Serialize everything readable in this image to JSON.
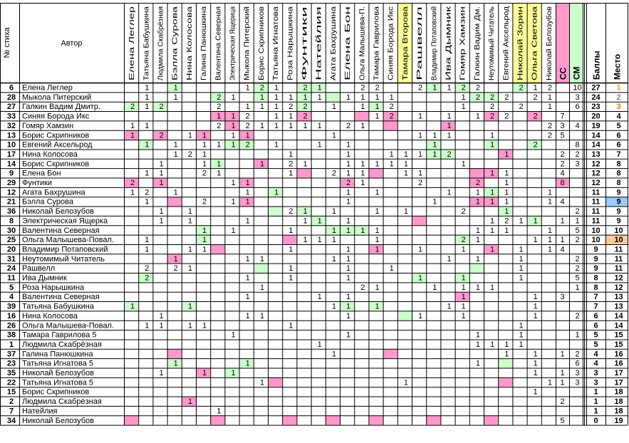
{
  "header": {
    "num_label": "№ стиха",
    "author_label": "Автор",
    "voters": [
      "Елена Леглер",
      "Татьяна Бабушкина",
      "Людмила Скабрёзная",
      "Бэлла Сурова",
      "Нина Колосова",
      "Галина Панюшкина",
      "Валентина Северная",
      "Электрическая Ящерица",
      "Мыкола Питерский",
      "Борис Скрипников",
      "Татьяна Игнатова",
      "Роза Нарышкина",
      "Фунтики",
      "Натейлия",
      "Агата Бахрушина",
      "Елена Бон",
      "Ольга Малышева-П.",
      "Тамара Гаврилова",
      "Синяя Борода Икс",
      "Тамара Второва",
      "Рашвелл",
      "Владимир Потаповский",
      "Ива Дымник",
      "Гомяр Хамзин",
      "Галкин Вадим Дм.",
      "Неутомимый Читатель",
      "Евгений Аксельрод",
      "Николай Зорин",
      "Ольга Светова",
      "Николай Белозубов"
    ],
    "highlighted_voters": {
      "19": "#ffff99",
      "27": "#ffff99",
      "28": "#ffff99"
    },
    "cc_label": "СС",
    "cm_label": "СМ",
    "score_label": "Баллы",
    "place_label": "Место"
  },
  "colors": {
    "pink": "#ff99cc",
    "green": "#ccffcc",
    "blue": "#99ccff",
    "orange": "#ffcc99",
    "yellow": "#ffff99",
    "gold": "#ff9900",
    "silver": "#808080",
    "bronze": "#ff6600"
  },
  "rows": [
    {
      "num": "6",
      "author": "Елена Леглер",
      "votes": {
        "1": "1",
        "3": "1",
        "8": "1",
        "9": "2",
        "10": "1",
        "12": "2",
        "13": "1",
        "16": "2",
        "17": "2",
        "20": "2",
        "21": "1",
        "22": "1",
        "23": "2",
        "24": "2",
        "27": "2",
        "28": "1",
        "29": "2"
      },
      "cc": "",
      "cm": "10",
      "score": "27",
      "place": "1",
      "place_color": "gold",
      "pink": [],
      "green": [
        3,
        9,
        12,
        13,
        21,
        23,
        27
      ],
      "place_bg": ""
    },
    {
      "num": "28",
      "author": "Мыкола Питерский",
      "votes": {
        "1": "1",
        "3": "1",
        "6": "2",
        "7": "1",
        "9": "1",
        "10": "1",
        "11": "1",
        "12": "1",
        "13": "1",
        "15": "1",
        "16": "1",
        "17": "1",
        "18": "1",
        "23": "1",
        "24": "2",
        "25": "2",
        "26": "2",
        "28": "2",
        "29": "1"
      },
      "cc": "",
      "cm": "3",
      "score": "24",
      "place": "2",
      "place_color": "silver",
      "pink": [],
      "green": [
        6,
        9,
        12,
        14,
        24,
        25
      ],
      "place_bg": ""
    },
    {
      "num": "27",
      "author": "Галкин Вадим Дмитр.",
      "votes": {
        "0": "2",
        "1": "1",
        "2": "2",
        "6": "2",
        "8": "1",
        "9": "1",
        "10": "1",
        "11": "2",
        "12": "2",
        "14": "1",
        "16": "1",
        "17": "1",
        "18": "2",
        "23": "1",
        "25": "2",
        "27": "2",
        "29": "1"
      },
      "cc": "",
      "cm": "6",
      "score": "23",
      "place": "3",
      "place_color": "bronze",
      "pink": [],
      "green": [
        0,
        2,
        12,
        17
      ],
      "place_bg": ""
    },
    {
      "num": "33",
      "author": "Синяя Борода Икс",
      "votes": {
        "6": "1",
        "7": "1",
        "8": "2",
        "10": "1",
        "11": "1",
        "12": "2",
        "17": "1",
        "18": "2",
        "20": "1",
        "22": "1",
        "24": "1",
        "25": "2",
        "26": "2",
        "28": "2"
      },
      "cc": "7",
      "cm": "",
      "score": "20",
      "place": "4",
      "place_color": "",
      "pink": [
        6,
        7,
        12,
        16,
        18,
        25,
        28
      ],
      "green": [],
      "place_bg": ""
    },
    {
      "num": "32",
      "author": "Гомяр Хамзин",
      "votes": {
        "0": "1",
        "1": "1",
        "6": "2",
        "7": "1",
        "8": "2",
        "9": "1",
        "10": "1",
        "11": "1",
        "12": "1",
        "13": "1",
        "15": "2",
        "16": "1",
        "22": "1",
        "29": "2"
      },
      "cc": "3",
      "cm": "4",
      "score": "19",
      "place": "5",
      "place_color": "",
      "pink": [
        7,
        18,
        22
      ],
      "green": [],
      "place_bg": ""
    },
    {
      "num": "13",
      "author": "Борис Скрипников",
      "votes": {
        "0": "1",
        "2": "2",
        "4": "1",
        "5": "1",
        "7": "1",
        "8": "1",
        "14": "1",
        "20": "1",
        "21": "1",
        "22": "1",
        "25": "1",
        "29": "2"
      },
      "cc": "5",
      "cm": "",
      "score": "14",
      "place": "6",
      "place_color": "",
      "pink": [
        0,
        2,
        5,
        8
      ],
      "green": [],
      "place_bg": ""
    },
    {
      "num": "10",
      "author": "Евгений Аксельрод",
      "votes": {
        "1": "1",
        "3": "1",
        "5": "1",
        "6": "1",
        "7": "1",
        "8": "2",
        "10": "1",
        "13": "1",
        "15": "1",
        "21": "1",
        "25": "1",
        "28": "2"
      },
      "cc": "",
      "cm": "8",
      "score": "14",
      "place": "6",
      "place_color": "",
      "pink": [],
      "green": [
        1,
        7,
        8,
        21,
        25,
        28
      ],
      "place_bg": ""
    },
    {
      "num": "17",
      "author": "Нина Колосова",
      "votes": {
        "3": "1",
        "4": "2",
        "5": "1",
        "11": "1",
        "15": "1",
        "18": "1",
        "19": "1",
        "20": "1",
        "21": "1",
        "22": "2",
        "26": "1"
      },
      "cc": "2",
      "cm": "2",
      "score": "13",
      "place": "7",
      "place_color": "",
      "pink": [
        26
      ],
      "green": [
        21,
        22
      ],
      "place_bg": ""
    },
    {
      "num": "14",
      "author": "Борис Скрипников",
      "votes": {
        "2": "1",
        "5": "1",
        "6": "1",
        "9": "1",
        "11": "2",
        "12": "1",
        "15": "1",
        "16": "1",
        "17": "1",
        "18": "1",
        "19": "1",
        "23": "1"
      },
      "cc": "2",
      "cm": "3",
      "score": "12",
      "place": "8",
      "place_color": "",
      "pink": [
        9
      ],
      "green": [
        6
      ],
      "place_bg": ""
    },
    {
      "num": "9",
      "author": "Елена Бон",
      "votes": {
        "1": "1",
        "2": "1",
        "5": "2",
        "6": "1",
        "11": "1",
        "14": "2",
        "15": "1",
        "16": "1",
        "19": "1",
        "20": "1",
        "25": "1",
        "26": "1"
      },
      "cc": "4",
      "cm": "",
      "score": "12",
      "place": "8",
      "place_color": "",
      "pink": [
        12,
        17,
        24,
        25
      ],
      "green": [],
      "place_bg": ""
    },
    {
      "num": "29",
      "author": "Фунтики",
      "votes": {
        "0": "2",
        "2": "1",
        "7": "1",
        "8": "1",
        "15": "2",
        "16": "1",
        "20": "2",
        "24": "2",
        "26": "1"
      },
      "cc": "8",
      "cm": "",
      "score": "12",
      "place": "8",
      "place_color": "",
      "pink": [
        0,
        2,
        8,
        15,
        24,
        31
      ],
      "green": [],
      "place_bg": ""
    },
    {
      "num": "12",
      "author": "Агата Бахрушина",
      "votes": {
        "0": "1",
        "1": "2",
        "3": "1",
        "8": "1",
        "10": "1",
        "15": "1",
        "17": "1",
        "22": "1",
        "24": "1",
        "25": "1",
        "26": "1",
        "29": "1"
      },
      "cc": "",
      "cm": "",
      "score": "11",
      "place": "9",
      "place_color": "",
      "pink": [],
      "green": [
        10,
        25
      ],
      "place_bg": ""
    },
    {
      "num": "21",
      "author": "Бэлла Сурова",
      "votes": {
        "1": "1",
        "5": "2",
        "7": "1",
        "8": "1",
        "15": "1",
        "21": "1",
        "24": "1",
        "25": "1",
        "26": "1",
        "29": "1"
      },
      "cc": "4",
      "cm": "",
      "score": "11",
      "place": "9",
      "place_color": "",
      "pink": [
        3,
        8,
        24,
        25
      ],
      "green": [],
      "place_bg": "blue"
    },
    {
      "num": "36",
      "author": "Николай Белозубов",
      "votes": {
        "2": "1",
        "4": "1",
        "11": "2",
        "12": "1",
        "14": "1",
        "17": "1",
        "19": "1",
        "23": "2",
        "26": "1"
      },
      "cc": "",
      "cm": "2",
      "score": "11",
      "place": "9",
      "place_color": "",
      "pink": [],
      "green": [
        10,
        12,
        26
      ],
      "place_bg": ""
    },
    {
      "num": "8",
      "author": "Электрическая Ящерка",
      "votes": {
        "2": "1",
        "4": "1",
        "8": "1",
        "12": "1",
        "13": "1",
        "15": "1",
        "25": "1",
        "26": "2",
        "27": "1",
        "28": "1"
      },
      "cc": "1",
      "cm": "1",
      "score": "11",
      "place": "9",
      "place_color": "",
      "pink": [
        20
      ],
      "green": [
        13,
        28
      ],
      "place_bg": ""
    },
    {
      "num": "30",
      "author": "Валентина Северная",
      "votes": {
        "5": "1",
        "7": "1",
        "11": "1",
        "14": "1",
        "15": "1",
        "16": "1",
        "17": "1",
        "24": "1",
        "25": "1",
        "26": "1",
        "29": "1"
      },
      "cc": "",
      "cm": "5",
      "score": "10",
      "place": "10",
      "place_color": "",
      "pink": [],
      "green": [
        5,
        14,
        15,
        16
      ],
      "place_bg": ""
    },
    {
      "num": "25",
      "author": "Ольга Малышева-Повал.",
      "votes": {
        "1": "1",
        "5": "1",
        "12": "1",
        "13": "1",
        "14": "1",
        "17": "1",
        "23": "2",
        "24": "1",
        "28": "1",
        "29": "1"
      },
      "cc": "1",
      "cm": "2",
      "score": "10",
      "place": "10",
      "place_color": "",
      "pink": [
        11
      ],
      "green": [
        5,
        23
      ],
      "place_bg": "orange"
    },
    {
      "num": "20",
      "author": "Владимир Потаповский",
      "votes": {
        "1": "1",
        "4": "1",
        "5": "1",
        "11": "1",
        "15": "1",
        "17": "1",
        "20": "1",
        "23": "1",
        "25": "1",
        "27": "1",
        "29": "1"
      },
      "cc": "4",
      "cm": "",
      "score": "9",
      "place": "11",
      "place_color": "",
      "pink": [
        6,
        17,
        25
      ],
      "green": [],
      "place_bg": ""
    },
    {
      "num": "31",
      "author": "Неутомимый Читатель",
      "votes": {
        "3": "1",
        "8": "1",
        "9": "1",
        "14": "1",
        "15": "1",
        "22": "1",
        "24": "1",
        "27": "1"
      },
      "cc": "",
      "cm": "2",
      "score": "9",
      "place": "11",
      "place_color": "",
      "pink": [
        3
      ],
      "green": [],
      "place_bg": ""
    },
    {
      "num": "24",
      "author": "Рашвелл",
      "votes": {
        "1": "2",
        "3": "2",
        "4": "1",
        "11": "1",
        "15": "1",
        "18": "1",
        "27": "1"
      },
      "cc": "",
      "cm": "2",
      "score": "9",
      "place": "11",
      "place_color": "",
      "pink": [],
      "green": [
        9,
        24
      ],
      "place_bg": ""
    },
    {
      "num": "11",
      "author": "Ива Дымник",
      "votes": {
        "1": "2",
        "8": "1",
        "11": "1",
        "15": "1",
        "20": "1",
        "23": "1",
        "27": "1"
      },
      "cc": "",
      "cm": "5",
      "score": "8",
      "place": "12",
      "place_color": "",
      "pink": [],
      "green": [
        1,
        20,
        23
      ],
      "place_bg": ""
    },
    {
      "num": "5",
      "author": "Роза Нарышкина",
      "votes": {
        "9": "1",
        "16": "2",
        "17": "1",
        "21": "1",
        "23": "1",
        "24": "1",
        "25": "1"
      },
      "cc": "",
      "cm": "1",
      "score": "8",
      "place": "12",
      "place_color": "",
      "pink": [],
      "green": [],
      "place_bg": ""
    },
    {
      "num": "4",
      "author": "Валентина Северная",
      "votes": {
        "8": "1",
        "13": "1",
        "15": "1",
        "23": "1",
        "28": "1"
      },
      "cc": "3",
      "cm": "",
      "score": "7",
      "place": "13",
      "place_color": "",
      "pink": [
        23
      ],
      "green": [],
      "place_bg": ""
    },
    {
      "num": "39",
      "author": "Татьяна Бабушкина",
      "votes": {
        "0": "1",
        "4": "1",
        "14": "1",
        "15": "1",
        "17": "1",
        "22": "1",
        "23": "1",
        "28": "1"
      },
      "cc": "",
      "cm": "",
      "score": "7",
      "place": "13",
      "place_color": "",
      "pink": [],
      "green": [
        0,
        4,
        15,
        17
      ],
      "place_bg": ""
    },
    {
      "num": "16",
      "author": "Нина Колосова",
      "votes": {
        "2": "1",
        "8": "1",
        "9": "1",
        "15": "1",
        "20": "1",
        "23": "1",
        "28": "1"
      },
      "cc": "",
      "cm": "2",
      "score": "6",
      "place": "14",
      "place_color": "",
      "pink": [],
      "green": [
        19
      ],
      "place_bg": ""
    },
    {
      "num": "26",
      "author": "Ольга Малышева-Повал.",
      "votes": {
        "1": "1",
        "2": "1",
        "4": "1",
        "5": "1",
        "11": "1",
        "27": "1"
      },
      "cc": "",
      "cm": "",
      "score": "6",
      "place": "14",
      "place_color": "",
      "pink": [],
      "green": [],
      "place_bg": ""
    },
    {
      "num": "38",
      "author": "Тамара Гаврилова 5",
      "votes": {
        "7": "1",
        "15": "1",
        "24": "1",
        "27": "1"
      },
      "cc": "",
      "cm": "1",
      "score": "5",
      "place": "15",
      "place_color": "",
      "pink": [],
      "green": [],
      "place_bg": ""
    },
    {
      "num": "1",
      "author": "Людмила Скабрёзная",
      "votes": {
        "13": "1",
        "24": "1",
        "25": "1",
        "26": "1",
        "27": "1"
      },
      "cc": "",
      "cm": "",
      "score": "5",
      "place": "15",
      "place_color": "",
      "pink": [],
      "green": [],
      "place_bg": ""
    },
    {
      "num": "37",
      "author": "Галина Панюшкина",
      "votes": {
        "14": "1",
        "26": "1",
        "28": "1"
      },
      "cc": "1",
      "cm": "2",
      "score": "4",
      "place": "16",
      "place_color": "",
      "pink": [
        3,
        18
      ],
      "green": [],
      "place_bg": ""
    },
    {
      "num": "23",
      "author": "Татьяна Игнатова 5",
      "votes": {
        "3": "1",
        "8": "1",
        "24": "1",
        "28": "1"
      },
      "cc": "",
      "cm": "6",
      "score": "4",
      "place": "16",
      "place_color": "",
      "pink": [],
      "green": [
        3,
        8,
        26
      ],
      "place_bg": ""
    },
    {
      "num": "35",
      "author": "Николай Белозубов",
      "votes": {
        "2": "1",
        "5": "1",
        "7": "1",
        "28": "1"
      },
      "cc": "1",
      "cm": "3",
      "score": "3",
      "place": "17",
      "place_color": "",
      "pink": [
        5
      ],
      "green": [
        7
      ],
      "place_bg": ""
    },
    {
      "num": "22",
      "author": "Татьяна Игнатова 5",
      "votes": {
        "9": "1",
        "19": "1",
        "29": "1"
      },
      "cc": "1",
      "cm": "3",
      "score": "3",
      "place": "17",
      "place_color": "",
      "pink": [
        10,
        26
      ],
      "green": [],
      "place_bg": ""
    },
    {
      "num": "15",
      "author": "Борис Скрипников",
      "votes": {
        "28": "1"
      },
      "cc": "",
      "cm": "",
      "score": "1",
      "place": "18",
      "place_color": "",
      "pink": [],
      "green": [],
      "place_bg": ""
    },
    {
      "num": "2",
      "author": "Людмила Скабрёзная",
      "votes": {
        "4": "1"
      },
      "cc": "2",
      "cm": "",
      "score": "1",
      "place": "18",
      "place_color": "",
      "pink": [
        4
      ],
      "green": [],
      "place_bg": ""
    },
    {
      "num": "7",
      "author": "Натейлия",
      "votes": {
        "6": "1"
      },
      "cc": "",
      "cm": "",
      "score": "1",
      "place": "18",
      "place_color": "",
      "pink": [],
      "green": [],
      "place_bg": ""
    },
    {
      "num": "34",
      "author": "Николай Белозубов",
      "votes": {},
      "cc": "5",
      "cm": "",
      "score": "0",
      "place": "19",
      "place_color": "",
      "pink": [
        0,
        6,
        11,
        14,
        17,
        21,
        25
      ],
      "green": [],
      "place_bg": ""
    }
  ]
}
